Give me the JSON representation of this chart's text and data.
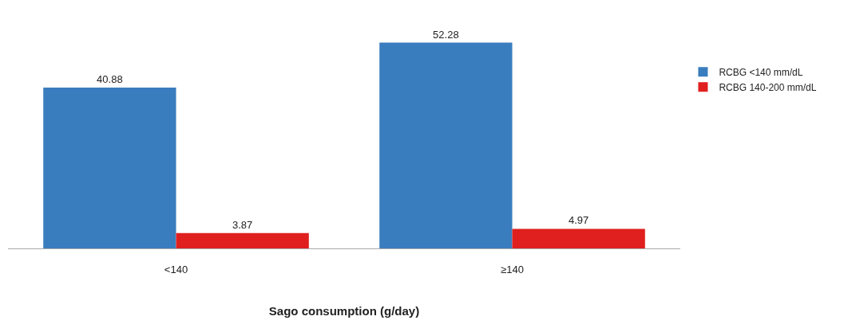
{
  "chart_data": {
    "type": "bar",
    "xlabel": "Sago consumption (g/day)",
    "categories": [
      "<140",
      "≥140"
    ],
    "series": [
      {
        "name": "RCBG <140 mm/dL",
        "color": "#3a7dbf",
        "values": [
          40.88,
          52.28
        ]
      },
      {
        "name": "RCBG 140-200 mm/dL",
        "color": "#e0201e",
        "values": [
          3.87,
          4.97
        ]
      }
    ],
    "data_labels": true,
    "legend": "right"
  }
}
